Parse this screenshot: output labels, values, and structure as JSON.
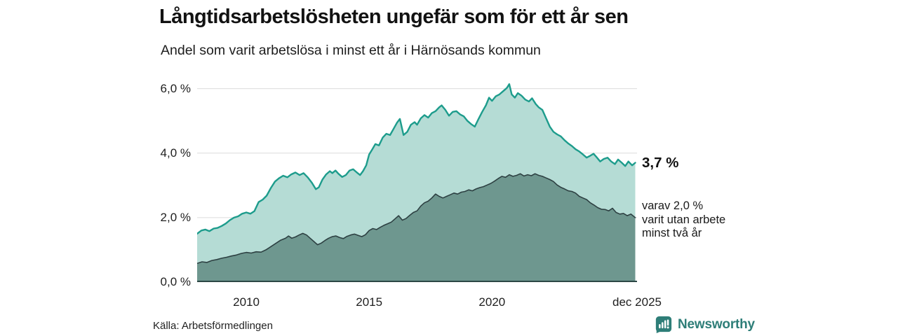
{
  "chart_data": {
    "type": "area",
    "title": "Långtidsarbetslösheten ungefär som för ett år sen",
    "subtitle": "Andel som varit arbetslösa i minst ett år i Härnösands kommun",
    "x_axis": {
      "range": [
        2008.0,
        2025.9
      ],
      "ticks": [
        {
          "value": 2010,
          "label": "2010"
        },
        {
          "value": 2015,
          "label": "2015"
        },
        {
          "value": 2020,
          "label": "2020"
        },
        {
          "value": 2025.9,
          "label": "dec 2025"
        }
      ]
    },
    "y_axis": {
      "range": [
        0,
        6.36
      ],
      "unit": "%",
      "ticks": [
        {
          "value": 0,
          "label": "0,0 %"
        },
        {
          "value": 2,
          "label": "2,0 %"
        },
        {
          "value": 4,
          "label": "4,0 %"
        },
        {
          "value": 6,
          "label": "6,0 %"
        }
      ],
      "gridlines": [
        2,
        4,
        6
      ]
    },
    "colors": {
      "grid": "#dcdcdc",
      "baseline": "#2b4745"
    },
    "series": [
      {
        "name": "Andel arbetslösa minst ett år",
        "line_color": "#1d9c8c",
        "fill_color": "#b5dcd5",
        "line_width": 2.4,
        "end_value": "3,7 %",
        "points": [
          [
            2008.0,
            1.5
          ],
          [
            2008.17,
            1.6
          ],
          [
            2008.33,
            1.63
          ],
          [
            2008.5,
            1.58
          ],
          [
            2008.67,
            1.66
          ],
          [
            2008.83,
            1.68
          ],
          [
            2009.0,
            1.74
          ],
          [
            2009.17,
            1.82
          ],
          [
            2009.33,
            1.92
          ],
          [
            2009.5,
            2.0
          ],
          [
            2009.67,
            2.04
          ],
          [
            2009.83,
            2.12
          ],
          [
            2010.0,
            2.16
          ],
          [
            2010.17,
            2.12
          ],
          [
            2010.33,
            2.2
          ],
          [
            2010.5,
            2.48
          ],
          [
            2010.67,
            2.56
          ],
          [
            2010.83,
            2.68
          ],
          [
            2011.0,
            2.92
          ],
          [
            2011.17,
            3.12
          ],
          [
            2011.33,
            3.22
          ],
          [
            2011.5,
            3.3
          ],
          [
            2011.67,
            3.25
          ],
          [
            2011.83,
            3.34
          ],
          [
            2012.0,
            3.4
          ],
          [
            2012.17,
            3.32
          ],
          [
            2012.33,
            3.38
          ],
          [
            2012.5,
            3.25
          ],
          [
            2012.67,
            3.08
          ],
          [
            2012.83,
            2.88
          ],
          [
            2012.95,
            2.94
          ],
          [
            2013.1,
            3.18
          ],
          [
            2013.25,
            3.34
          ],
          [
            2013.4,
            3.44
          ],
          [
            2013.5,
            3.38
          ],
          [
            2013.63,
            3.46
          ],
          [
            2013.75,
            3.36
          ],
          [
            2013.9,
            3.26
          ],
          [
            2014.05,
            3.32
          ],
          [
            2014.2,
            3.46
          ],
          [
            2014.35,
            3.5
          ],
          [
            2014.5,
            3.4
          ],
          [
            2014.63,
            3.32
          ],
          [
            2014.75,
            3.44
          ],
          [
            2014.88,
            3.62
          ],
          [
            2015.0,
            3.96
          ],
          [
            2015.13,
            4.12
          ],
          [
            2015.25,
            4.28
          ],
          [
            2015.4,
            4.24
          ],
          [
            2015.55,
            4.48
          ],
          [
            2015.7,
            4.6
          ],
          [
            2015.85,
            4.56
          ],
          [
            2016.0,
            4.76
          ],
          [
            2016.13,
            4.94
          ],
          [
            2016.25,
            5.06
          ],
          [
            2016.4,
            4.56
          ],
          [
            2016.55,
            4.66
          ],
          [
            2016.7,
            4.88
          ],
          [
            2016.85,
            4.96
          ],
          [
            2016.95,
            4.88
          ],
          [
            2017.1,
            5.08
          ],
          [
            2017.25,
            5.18
          ],
          [
            2017.4,
            5.1
          ],
          [
            2017.55,
            5.24
          ],
          [
            2017.7,
            5.3
          ],
          [
            2017.85,
            5.42
          ],
          [
            2017.95,
            5.48
          ],
          [
            2018.1,
            5.34
          ],
          [
            2018.25,
            5.16
          ],
          [
            2018.4,
            5.28
          ],
          [
            2018.55,
            5.3
          ],
          [
            2018.7,
            5.2
          ],
          [
            2018.85,
            5.14
          ],
          [
            2019.0,
            5.0
          ],
          [
            2019.15,
            4.9
          ],
          [
            2019.3,
            4.82
          ],
          [
            2019.45,
            5.06
          ],
          [
            2019.6,
            5.28
          ],
          [
            2019.75,
            5.48
          ],
          [
            2019.88,
            5.72
          ],
          [
            2020.0,
            5.62
          ],
          [
            2020.15,
            5.76
          ],
          [
            2020.3,
            5.82
          ],
          [
            2020.45,
            5.92
          ],
          [
            2020.6,
            6.02
          ],
          [
            2020.7,
            6.14
          ],
          [
            2020.8,
            5.82
          ],
          [
            2020.93,
            5.72
          ],
          [
            2021.05,
            5.86
          ],
          [
            2021.2,
            5.78
          ],
          [
            2021.35,
            5.66
          ],
          [
            2021.5,
            5.6
          ],
          [
            2021.63,
            5.7
          ],
          [
            2021.78,
            5.52
          ],
          [
            2021.9,
            5.42
          ],
          [
            2022.05,
            5.34
          ],
          [
            2022.2,
            5.08
          ],
          [
            2022.35,
            4.82
          ],
          [
            2022.5,
            4.66
          ],
          [
            2022.65,
            4.58
          ],
          [
            2022.8,
            4.52
          ],
          [
            2022.95,
            4.4
          ],
          [
            2023.1,
            4.3
          ],
          [
            2023.25,
            4.22
          ],
          [
            2023.4,
            4.12
          ],
          [
            2023.55,
            4.05
          ],
          [
            2023.7,
            3.96
          ],
          [
            2023.85,
            3.86
          ],
          [
            2024.0,
            3.92
          ],
          [
            2024.13,
            3.98
          ],
          [
            2024.25,
            3.88
          ],
          [
            2024.4,
            3.74
          ],
          [
            2024.55,
            3.82
          ],
          [
            2024.7,
            3.86
          ],
          [
            2024.85,
            3.74
          ],
          [
            2025.0,
            3.66
          ],
          [
            2025.13,
            3.8
          ],
          [
            2025.28,
            3.7
          ],
          [
            2025.42,
            3.6
          ],
          [
            2025.55,
            3.74
          ],
          [
            2025.7,
            3.62
          ],
          [
            2025.83,
            3.7
          ]
        ]
      },
      {
        "name": "Andel arbetslösa minst två år",
        "line_color": "#2d4042",
        "fill_color": "#6e978f",
        "line_width": 1.6,
        "end_value": "2,0 %",
        "points": [
          [
            2008.0,
            0.58
          ],
          [
            2008.2,
            0.63
          ],
          [
            2008.4,
            0.61
          ],
          [
            2008.6,
            0.67
          ],
          [
            2008.8,
            0.7
          ],
          [
            2009.0,
            0.74
          ],
          [
            2009.2,
            0.77
          ],
          [
            2009.4,
            0.81
          ],
          [
            2009.6,
            0.84
          ],
          [
            2009.8,
            0.89
          ],
          [
            2010.0,
            0.92
          ],
          [
            2010.2,
            0.9
          ],
          [
            2010.4,
            0.94
          ],
          [
            2010.6,
            0.93
          ],
          [
            2010.8,
            1.0
          ],
          [
            2011.0,
            1.1
          ],
          [
            2011.2,
            1.2
          ],
          [
            2011.4,
            1.3
          ],
          [
            2011.6,
            1.36
          ],
          [
            2011.72,
            1.43
          ],
          [
            2011.85,
            1.36
          ],
          [
            2012.0,
            1.4
          ],
          [
            2012.15,
            1.46
          ],
          [
            2012.3,
            1.51
          ],
          [
            2012.45,
            1.46
          ],
          [
            2012.6,
            1.36
          ],
          [
            2012.75,
            1.26
          ],
          [
            2012.9,
            1.16
          ],
          [
            2013.05,
            1.21
          ],
          [
            2013.2,
            1.29
          ],
          [
            2013.35,
            1.36
          ],
          [
            2013.5,
            1.41
          ],
          [
            2013.65,
            1.43
          ],
          [
            2013.8,
            1.38
          ],
          [
            2013.95,
            1.35
          ],
          [
            2014.1,
            1.42
          ],
          [
            2014.25,
            1.46
          ],
          [
            2014.4,
            1.49
          ],
          [
            2014.55,
            1.45
          ],
          [
            2014.7,
            1.41
          ],
          [
            2014.85,
            1.47
          ],
          [
            2015.0,
            1.6
          ],
          [
            2015.15,
            1.66
          ],
          [
            2015.3,
            1.63
          ],
          [
            2015.45,
            1.7
          ],
          [
            2015.6,
            1.76
          ],
          [
            2015.75,
            1.81
          ],
          [
            2015.9,
            1.86
          ],
          [
            2016.05,
            1.96
          ],
          [
            2016.2,
            2.06
          ],
          [
            2016.35,
            1.92
          ],
          [
            2016.5,
            1.97
          ],
          [
            2016.65,
            2.07
          ],
          [
            2016.8,
            2.16
          ],
          [
            2016.95,
            2.21
          ],
          [
            2017.1,
            2.36
          ],
          [
            2017.25,
            2.46
          ],
          [
            2017.4,
            2.51
          ],
          [
            2017.55,
            2.61
          ],
          [
            2017.7,
            2.73
          ],
          [
            2017.85,
            2.66
          ],
          [
            2018.0,
            2.61
          ],
          [
            2018.15,
            2.66
          ],
          [
            2018.3,
            2.71
          ],
          [
            2018.45,
            2.76
          ],
          [
            2018.6,
            2.73
          ],
          [
            2018.75,
            2.79
          ],
          [
            2018.9,
            2.81
          ],
          [
            2019.05,
            2.86
          ],
          [
            2019.2,
            2.83
          ],
          [
            2019.35,
            2.89
          ],
          [
            2019.5,
            2.93
          ],
          [
            2019.65,
            2.96
          ],
          [
            2019.8,
            3.01
          ],
          [
            2019.95,
            3.06
          ],
          [
            2020.1,
            3.13
          ],
          [
            2020.25,
            3.21
          ],
          [
            2020.4,
            3.28
          ],
          [
            2020.55,
            3.25
          ],
          [
            2020.7,
            3.33
          ],
          [
            2020.85,
            3.28
          ],
          [
            2021.0,
            3.31
          ],
          [
            2021.15,
            3.36
          ],
          [
            2021.3,
            3.29
          ],
          [
            2021.45,
            3.33
          ],
          [
            2021.6,
            3.3
          ],
          [
            2021.75,
            3.36
          ],
          [
            2021.9,
            3.31
          ],
          [
            2022.05,
            3.28
          ],
          [
            2022.2,
            3.23
          ],
          [
            2022.35,
            3.18
          ],
          [
            2022.5,
            3.12
          ],
          [
            2022.65,
            3.01
          ],
          [
            2022.8,
            2.94
          ],
          [
            2022.95,
            2.89
          ],
          [
            2023.1,
            2.83
          ],
          [
            2023.25,
            2.81
          ],
          [
            2023.4,
            2.76
          ],
          [
            2023.55,
            2.66
          ],
          [
            2023.7,
            2.61
          ],
          [
            2023.85,
            2.56
          ],
          [
            2024.0,
            2.46
          ],
          [
            2024.15,
            2.39
          ],
          [
            2024.3,
            2.31
          ],
          [
            2024.45,
            2.26
          ],
          [
            2024.6,
            2.25
          ],
          [
            2024.75,
            2.21
          ],
          [
            2024.9,
            2.29
          ],
          [
            2025.05,
            2.16
          ],
          [
            2025.2,
            2.11
          ],
          [
            2025.35,
            2.13
          ],
          [
            2025.5,
            2.06
          ],
          [
            2025.65,
            2.11
          ],
          [
            2025.83,
            2.0
          ]
        ]
      }
    ],
    "annotations": {
      "primary_value": "3,7 %",
      "secondary_lines": [
        "varav 2,0 %",
        "varit utan arbete",
        "minst två år"
      ]
    },
    "legend_position": "none",
    "grid": "horizontal-only"
  },
  "footer": {
    "source": "Källa: Arbetsförmedlingen",
    "brand": "Newsworthy",
    "brand_color": "#2e7e78"
  }
}
